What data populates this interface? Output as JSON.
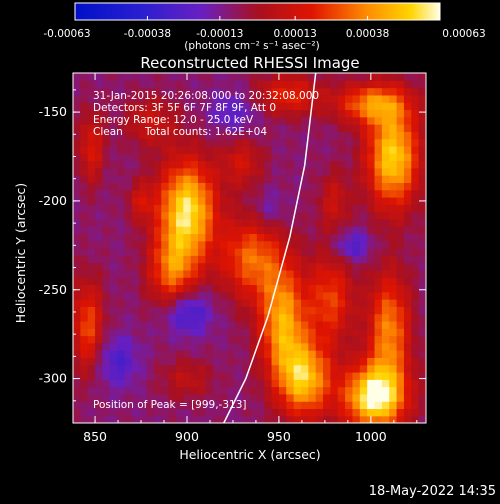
{
  "chart_data": {
    "type": "heatmap",
    "title": "Reconstructed RHESSI Image",
    "xlabel": "Heliocentric X (arcsec)",
    "ylabel": "Heliocentric Y (arcsec)",
    "xlim": [
      838,
      1030
    ],
    "ylim": [
      -325,
      -128
    ],
    "x_ticks": [
      {
        "value": 850,
        "label": "850"
      },
      {
        "value": 900,
        "label": "900"
      },
      {
        "value": 950,
        "label": "950"
      },
      {
        "value": 1000,
        "label": "1000"
      }
    ],
    "y_ticks": [
      {
        "value": -150,
        "label": "-150"
      },
      {
        "value": -200,
        "label": "-200"
      },
      {
        "value": -250,
        "label": "-250"
      },
      {
        "value": -300,
        "label": "-300"
      }
    ],
    "colorbar": {
      "min": -0.00063,
      "max": 0.00063,
      "ticks": [
        {
          "value": -0.00063,
          "label": "-0.00063"
        },
        {
          "value": -0.00038,
          "label": "-0.00038"
        },
        {
          "value": -0.00013,
          "label": "-0.00013"
        },
        {
          "value": 0.00013,
          "label": "0.00013"
        },
        {
          "value": 0.00038,
          "label": "0.00038"
        },
        {
          "value": 0.00063,
          "label": "0.00063"
        }
      ],
      "units_label": "(photons cm⁻² s⁻¹ asec⁻²)"
    },
    "annotations": {
      "time_range": "31-Jan-2015 20:26:08.000 to 20:32:08.000",
      "detectors": "Detectors: 3F 5F 6F 7F 8F 9F, Att 0",
      "energy_range": "Energy Range: 12.0 - 25.0 keV",
      "clean": "Clean",
      "total_counts": "Total counts: 1.62E+04",
      "peak": "Position of Peak = [999,-313]"
    },
    "peak": {
      "x": 999,
      "y": -313
    },
    "limb_curve": [
      {
        "x": 920,
        "y": -325
      },
      {
        "x": 932,
        "y": -300
      },
      {
        "x": 944,
        "y": -265
      },
      {
        "x": 956,
        "y": -220
      },
      {
        "x": 964,
        "y": -180
      },
      {
        "x": 970,
        "y": -128
      }
    ],
    "blobs": [
      {
        "x": 900,
        "y": -205,
        "sx": 11,
        "sy": 20,
        "a": 0.00066
      },
      {
        "x": 892,
        "y": -240,
        "sx": 9,
        "sy": 15,
        "a": 0.00038
      },
      {
        "x": 880,
        "y": -155,
        "sx": 10,
        "sy": 10,
        "a": 0.0002
      },
      {
        "x": 935,
        "y": -232,
        "sx": 12,
        "sy": 16,
        "a": 0.0004
      },
      {
        "x": 952,
        "y": -268,
        "sx": 9,
        "sy": 22,
        "a": 0.00052
      },
      {
        "x": 964,
        "y": -300,
        "sx": 10,
        "sy": 15,
        "a": 0.00056
      },
      {
        "x": 978,
        "y": -255,
        "sx": 9,
        "sy": 18,
        "a": 0.00034
      },
      {
        "x": 1002,
        "y": -310,
        "sx": 12,
        "sy": 13,
        "a": 0.00072
      },
      {
        "x": 1010,
        "y": -272,
        "sx": 8,
        "sy": 22,
        "a": 0.00046
      },
      {
        "x": 1012,
        "y": -175,
        "sx": 10,
        "sy": 20,
        "a": 0.00062
      },
      {
        "x": 1000,
        "y": -145,
        "sx": 14,
        "sy": 8,
        "a": 0.00042
      },
      {
        "x": 955,
        "y": -140,
        "sx": 12,
        "sy": 8,
        "a": 0.0003
      },
      {
        "x": 846,
        "y": -270,
        "sx": 6,
        "sy": 18,
        "a": 0.00036
      },
      {
        "x": 848,
        "y": -170,
        "sx": 5,
        "sy": 14,
        "a": 0.00026
      },
      {
        "x": 930,
        "y": -178,
        "sx": 8,
        "sy": 10,
        "a": 0.00022
      },
      {
        "x": 980,
        "y": -200,
        "sx": 6,
        "sy": 12,
        "a": 0.0002
      },
      {
        "x": 900,
        "y": -300,
        "sx": 10,
        "sy": 8,
        "a": 0.00016
      },
      {
        "x": 875,
        "y": -200,
        "sx": 5,
        "sy": 8,
        "a": 0.0002
      },
      {
        "x": 990,
        "y": -225,
        "sx": 7,
        "sy": 6,
        "a": -0.00022
      },
      {
        "x": 900,
        "y": -262,
        "sx": 9,
        "sy": 9,
        "a": -0.00028
      },
      {
        "x": 862,
        "y": -290,
        "sx": 8,
        "sy": 10,
        "a": -0.0002
      },
      {
        "x": 925,
        "y": -150,
        "sx": 9,
        "sy": 8,
        "a": -0.00016
      },
      {
        "x": 945,
        "y": -205,
        "sx": 6,
        "sy": 8,
        "a": -0.00012
      }
    ],
    "baseline": -9e-05
  },
  "timestamp": "18-May-2022 14:35",
  "colors": {
    "background": "#000000",
    "text": "#ffffff",
    "limb": "#ffffff"
  }
}
